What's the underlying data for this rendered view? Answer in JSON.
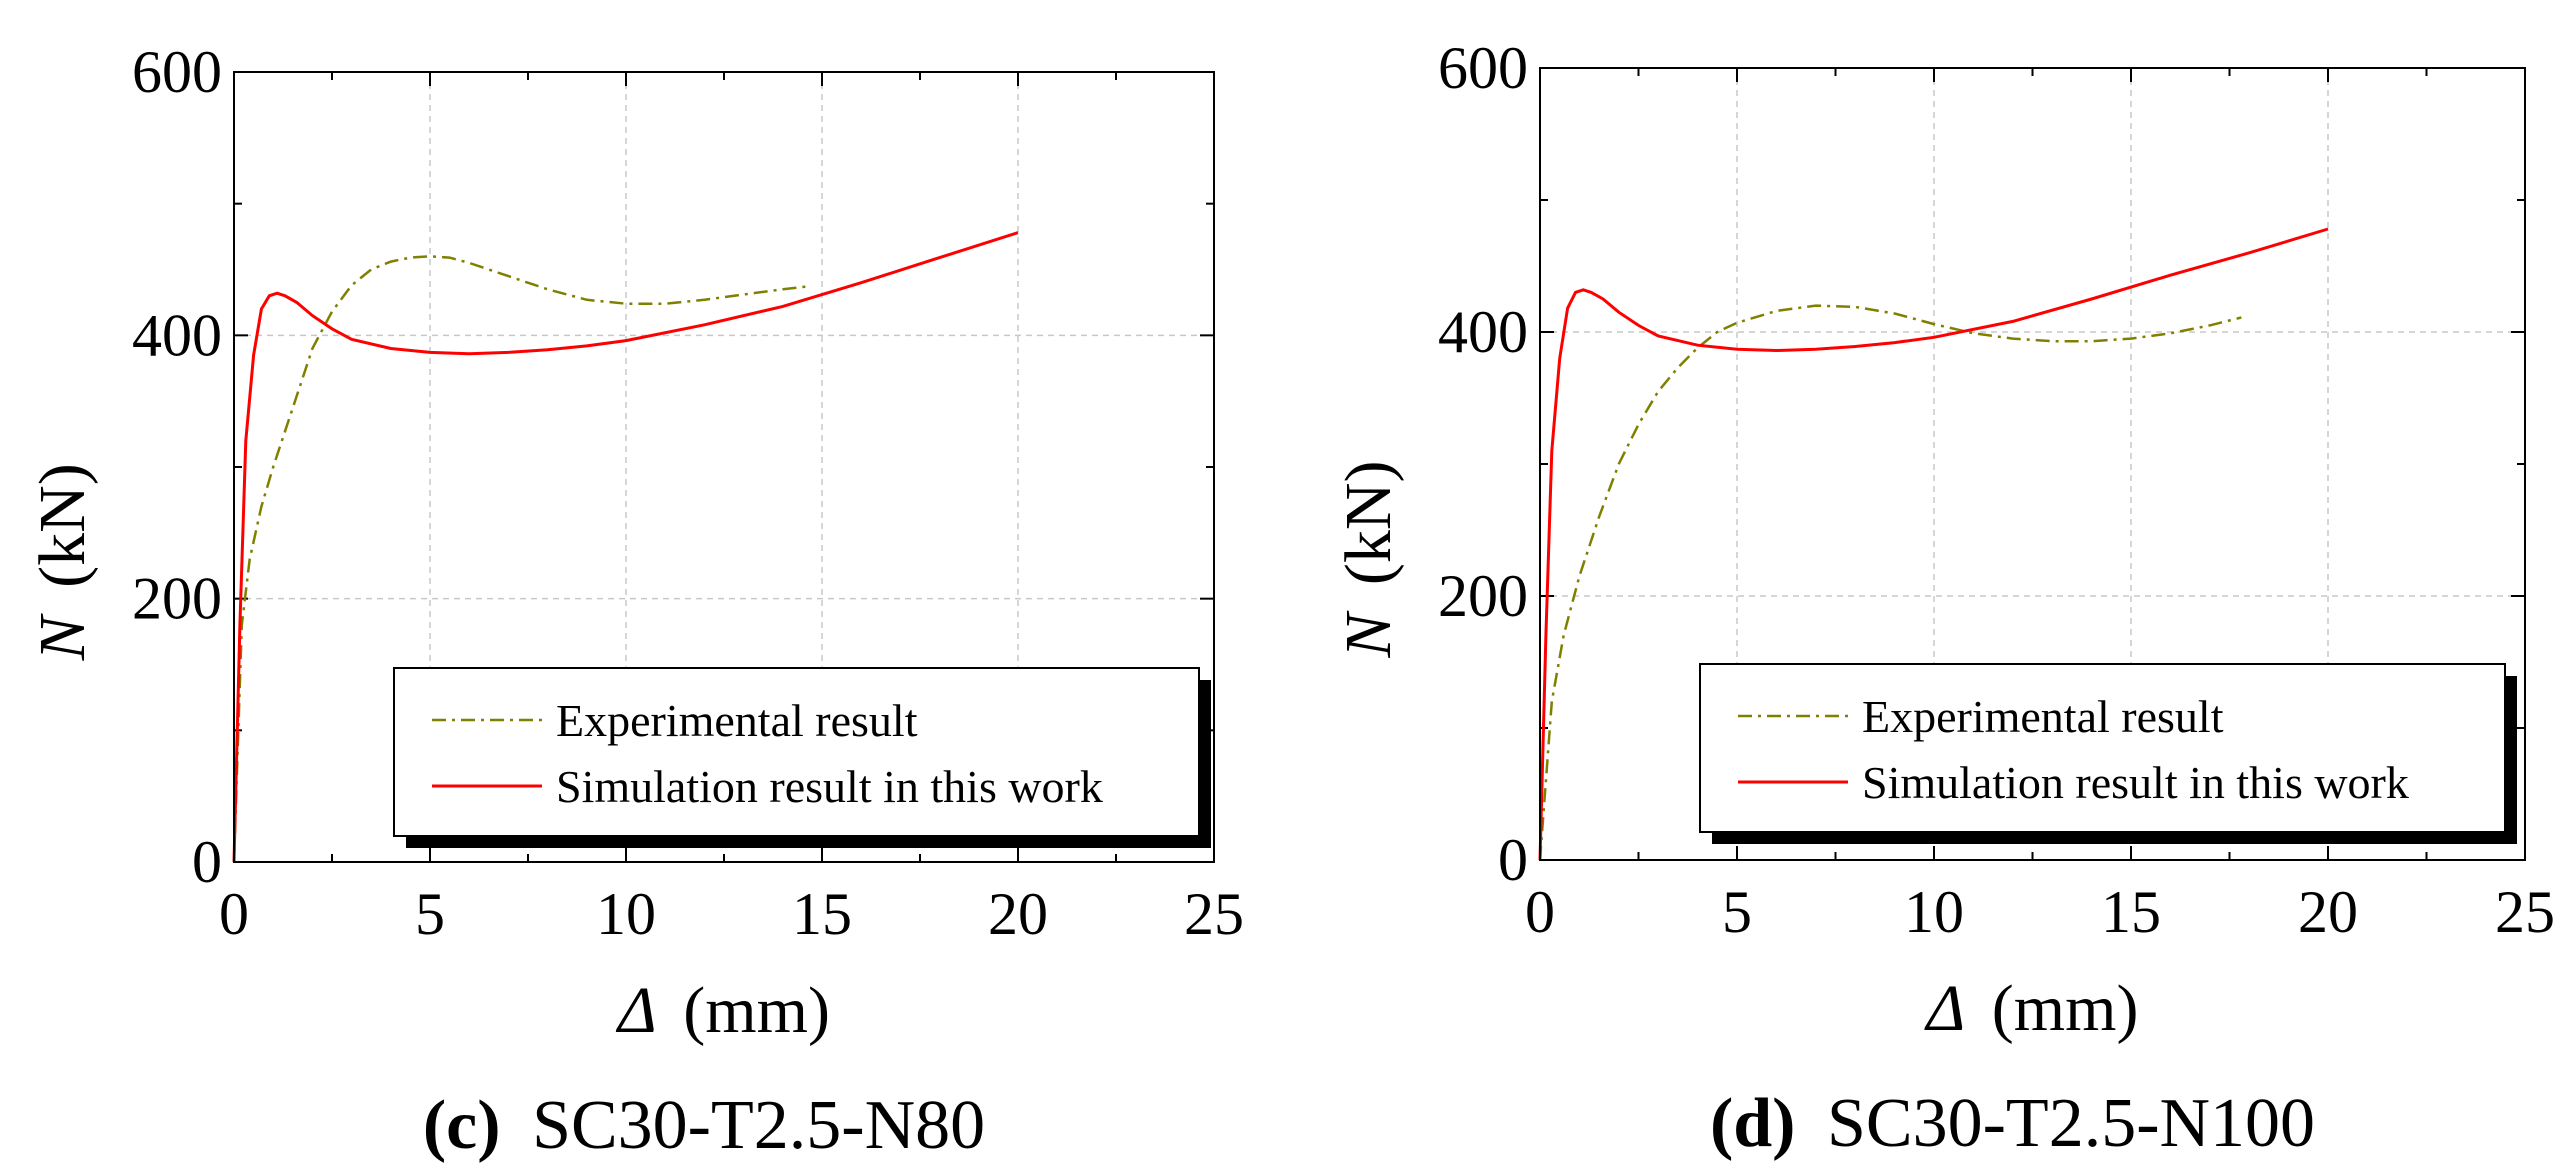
{
  "chart_data": [
    {
      "type": "line",
      "caption_letter": "(c)",
      "caption_text": "SC30-T2.5-N80",
      "xlabel_symbol": "Δ",
      "xlabel_unit": "(mm)",
      "ylabel_symbol": "N",
      "ylabel_unit": "(kN)",
      "xlim": [
        0,
        25
      ],
      "ylim": [
        0,
        600
      ],
      "xticks": [
        "0",
        "5",
        "10",
        "15",
        "20",
        "25"
      ],
      "yticks": [
        "0",
        "200",
        "400",
        "600"
      ],
      "grid": true,
      "legend_position": "bottom-right",
      "series": [
        {
          "name": "Experimental result",
          "style": "dash-dot",
          "color": "#808000",
          "x": [
            0,
            0.2,
            0.4,
            0.7,
            1.0,
            1.5,
            2.0,
            2.5,
            3.0,
            3.5,
            4.0,
            4.5,
            5.0,
            5.5,
            6.0,
            7.0,
            8.0,
            9.0,
            10.0,
            11.0,
            12.0,
            13.0,
            14.0,
            14.6
          ],
          "y": [
            0,
            180,
            230,
            270,
            300,
            345,
            390,
            418,
            438,
            450,
            456,
            459,
            460,
            459,
            455,
            445,
            435,
            427,
            424,
            424,
            427,
            431,
            435,
            437
          ]
        },
        {
          "name": "Simulation result in this work",
          "style": "solid",
          "color": "#ff0000",
          "x": [
            0,
            0.15,
            0.3,
            0.5,
            0.7,
            0.9,
            1.1,
            1.3,
            1.6,
            2.0,
            2.5,
            3.0,
            4.0,
            5.0,
            6.0,
            7.0,
            8.0,
            9.0,
            10.0,
            12.0,
            14.0,
            16.0,
            18.0,
            20.0
          ],
          "y": [
            0,
            180,
            320,
            385,
            420,
            430,
            432,
            430,
            425,
            415,
            405,
            397,
            390,
            387,
            386,
            387,
            389,
            392,
            396,
            408,
            422,
            440,
            459,
            478
          ]
        }
      ]
    },
    {
      "type": "line",
      "caption_letter": "(d)",
      "caption_text": "SC30-T2.5-N100",
      "xlabel_symbol": "Δ",
      "xlabel_unit": "(mm)",
      "ylabel_symbol": "N",
      "ylabel_unit": "(kN)",
      "xlim": [
        0,
        25
      ],
      "ylim": [
        0,
        600
      ],
      "xticks": [
        "0",
        "5",
        "10",
        "15",
        "20",
        "25"
      ],
      "yticks": [
        "0",
        "200",
        "400",
        "600"
      ],
      "grid": true,
      "legend_position": "bottom-right",
      "series": [
        {
          "name": "Experimental result",
          "style": "dash-dot",
          "color": "#808000",
          "x": [
            0,
            0.3,
            0.6,
            1.0,
            1.5,
            2.0,
            2.5,
            3.0,
            3.5,
            4.0,
            4.5,
            5.0,
            6.0,
            7.0,
            8.0,
            9.0,
            10.0,
            11.0,
            12.0,
            13.0,
            14.0,
            15.0,
            16.0,
            17.0,
            17.8
          ],
          "y": [
            0,
            120,
            170,
            215,
            260,
            300,
            330,
            355,
            373,
            388,
            400,
            407,
            416,
            420,
            419,
            414,
            406,
            399,
            395,
            393,
            393,
            395,
            399,
            405,
            411
          ]
        },
        {
          "name": "Simulation result in this work",
          "style": "solid",
          "color": "#ff0000",
          "x": [
            0,
            0.15,
            0.3,
            0.5,
            0.7,
            0.9,
            1.1,
            1.3,
            1.6,
            2.0,
            2.5,
            3.0,
            4.0,
            5.0,
            6.0,
            7.0,
            8.0,
            9.0,
            10.0,
            12.0,
            14.0,
            16.0,
            18.0,
            20.0
          ],
          "y": [
            0,
            170,
            310,
            380,
            418,
            430,
            432,
            430,
            425,
            415,
            405,
            397,
            390,
            387,
            386,
            387,
            389,
            392,
            396,
            408,
            425,
            443,
            460,
            478
          ]
        }
      ]
    }
  ]
}
